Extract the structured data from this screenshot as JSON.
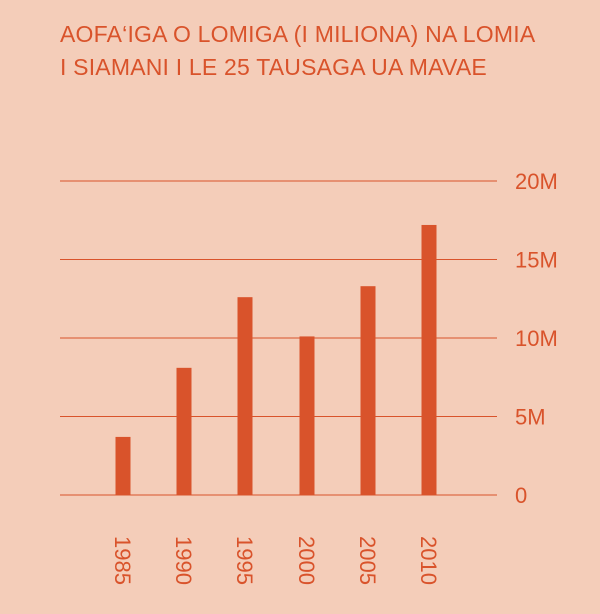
{
  "title": {
    "line1": "AOFA‘IGA O LOMIGA (I MILIONA) NA LOMIA",
    "line2": "I SIAMANI I LE 25 TAUSAGA UA MAVAE"
  },
  "colors": {
    "background": "#f4cdb9",
    "accent": "#d9532b"
  },
  "chart_data": {
    "type": "bar",
    "title": "AOFA‘IGA O LOMIGA (I MILIONA) NA LOMIA I SIAMANI I LE 25 TAUSAGA UA MAVAE",
    "categories": [
      "1985",
      "1990",
      "1995",
      "2000",
      "2005",
      "2010"
    ],
    "values": [
      3.7,
      8.1,
      12.6,
      10.1,
      13.3,
      17.2
    ],
    "ylim": [
      0,
      20
    ],
    "yticks": [
      {
        "value": 0,
        "label": "0"
      },
      {
        "value": 5,
        "label": "5M"
      },
      {
        "value": 10,
        "label": "10M"
      },
      {
        "value": 15,
        "label": "15M"
      },
      {
        "value": 20,
        "label": "20M"
      }
    ],
    "xlabel": "",
    "ylabel": "",
    "grid": true,
    "axis_position": "right"
  }
}
